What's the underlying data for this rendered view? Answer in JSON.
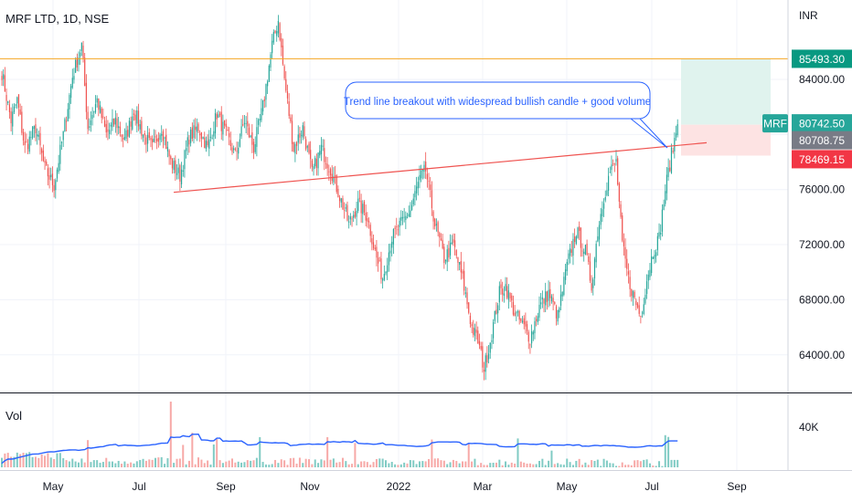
{
  "header": {
    "symbol": "MRF LTD, 1D, NSE",
    "currency": "INR"
  },
  "volume_panel": {
    "label": "Vol",
    "scale_label": "40K"
  },
  "colors": {
    "up": "#26a69a",
    "down": "#ef5350",
    "volume_up": "#80cbc4",
    "volume_down": "#f7a9a7",
    "trendline": "#ef5350",
    "resistance": "#f5a623",
    "volume_ma": "#2962ff",
    "target_zone": "#e0f3ee",
    "stop_zone": "#fde3e3",
    "annotation": "#2962ff"
  },
  "annotation": {
    "text": "Trend line breakout with widespread bullish candle + good volume"
  },
  "price_tags": [
    {
      "id": "resistance",
      "text": "85493.30",
      "color": "#089981"
    },
    {
      "id": "symbol",
      "label": "MRF",
      "text": "80742.50",
      "color": "#26a69a"
    },
    {
      "id": "entry",
      "text": "80708.75",
      "color": "#787b86"
    },
    {
      "id": "stop",
      "text": "78469.15",
      "color": "#f23645"
    }
  ],
  "chart_data": {
    "type": "candlestick",
    "title": "MRF LTD, 1D, NSE",
    "y_unit": "INR",
    "ylim": [
      61600,
      89100
    ],
    "y_ticks": [
      {
        "value": 84000,
        "label": "84000.00"
      },
      {
        "value": 80000,
        "label": "80000.00"
      },
      {
        "value": 76000,
        "label": "76000.00"
      },
      {
        "value": 72000,
        "label": "72000.00"
      },
      {
        "value": 68000,
        "label": "68000.00"
      },
      {
        "value": 64000,
        "label": "64000.00"
      }
    ],
    "x_ticks": [
      "May",
      "Jul",
      "Sep",
      "Nov",
      "2022",
      "Mar",
      "May",
      "Jul",
      "Sep"
    ],
    "last_price": 80742.5,
    "resistance_level": 85493.3,
    "position": {
      "entry": 80708.75,
      "target": 85493.3,
      "stop": 78469.15
    },
    "trendline": {
      "start_value": 75800,
      "end_value": 79400
    },
    "volume_scale": 40000,
    "price_anchors": [
      [
        0,
        84500
      ],
      [
        6,
        81000
      ],
      [
        10,
        82500
      ],
      [
        15,
        79000
      ],
      [
        22,
        80500
      ],
      [
        28,
        77500
      ],
      [
        34,
        76300
      ],
      [
        40,
        80000
      ],
      [
        46,
        84200
      ],
      [
        52,
        86500
      ],
      [
        56,
        80500
      ],
      [
        62,
        82500
      ],
      [
        68,
        80000
      ],
      [
        74,
        81000
      ],
      [
        80,
        79500
      ],
      [
        86,
        81800
      ],
      [
        92,
        80000
      ],
      [
        98,
        79000
      ],
      [
        104,
        80500
      ],
      [
        110,
        78000
      ],
      [
        116,
        77000
      ],
      [
        122,
        79800
      ],
      [
        128,
        80500
      ],
      [
        134,
        79000
      ],
      [
        140,
        81500
      ],
      [
        146,
        80000
      ],
      [
        152,
        78500
      ],
      [
        158,
        81000
      ],
      [
        164,
        79000
      ],
      [
        170,
        82000
      ],
      [
        176,
        86500
      ],
      [
        180,
        88300
      ],
      [
        184,
        84000
      ],
      [
        190,
        79000
      ],
      [
        196,
        80500
      ],
      [
        202,
        77200
      ],
      [
        208,
        79000
      ],
      [
        214,
        77500
      ],
      [
        220,
        75500
      ],
      [
        226,
        73500
      ],
      [
        232,
        75000
      ],
      [
        238,
        74000
      ],
      [
        244,
        71000
      ],
      [
        248,
        69600
      ],
      [
        254,
        72500
      ],
      [
        260,
        73500
      ],
      [
        266,
        74500
      ],
      [
        272,
        76800
      ],
      [
        276,
        77400
      ],
      [
        282,
        73500
      ],
      [
        288,
        71000
      ],
      [
        294,
        72000
      ],
      [
        300,
        69500
      ],
      [
        306,
        66000
      ],
      [
        310,
        65000
      ],
      [
        314,
        63000
      ],
      [
        318,
        65000
      ],
      [
        324,
        68500
      ],
      [
        328,
        69000
      ],
      [
        334,
        67000
      ],
      [
        340,
        66000
      ],
      [
        344,
        65200
      ],
      [
        350,
        67500
      ],
      [
        356,
        68500
      ],
      [
        362,
        66800
      ],
      [
        368,
        70500
      ],
      [
        374,
        73000
      ],
      [
        380,
        71500
      ],
      [
        384,
        69000
      ],
      [
        388,
        73000
      ],
      [
        392,
        75500
      ],
      [
        396,
        77300
      ],
      [
        400,
        78000
      ],
      [
        404,
        72000
      ],
      [
        408,
        69500
      ],
      [
        412,
        68000
      ],
      [
        416,
        66800
      ],
      [
        420,
        69500
      ],
      [
        424,
        71500
      ],
      [
        428,
        72500
      ],
      [
        432,
        76000
      ],
      [
        436,
        78500
      ],
      [
        440,
        80700
      ]
    ],
    "candles_count": 441
  }
}
